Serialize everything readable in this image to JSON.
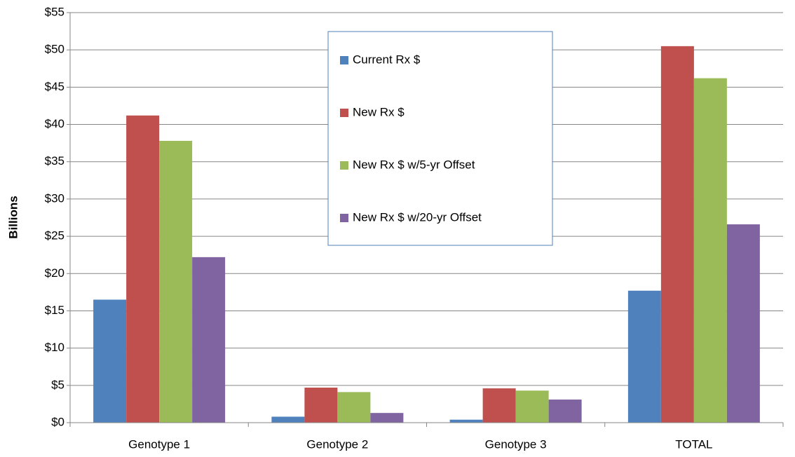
{
  "chart_data": {
    "type": "bar",
    "y_label": "Billions",
    "categories": [
      "Genotype 1",
      "Genotype 2",
      "Genotype 3",
      "TOTAL"
    ],
    "series": [
      {
        "name": "Current Rx $",
        "color": "#4f81bd",
        "values": [
          16.5,
          0.8,
          0.4,
          17.7
        ]
      },
      {
        "name": "New Rx $",
        "color": "#c0504d",
        "values": [
          41.2,
          4.7,
          4.6,
          50.5
        ]
      },
      {
        "name": "New Rx $ w/5-yr Offset",
        "color": "#9bbb59",
        "values": [
          37.8,
          4.1,
          4.3,
          46.2
        ]
      },
      {
        "name": "New Rx $ w/20-yr Offset",
        "color": "#8064a2",
        "values": [
          22.2,
          1.3,
          3.1,
          26.6
        ]
      }
    ],
    "ylim": [
      0,
      55
    ],
    "yticks": [
      {
        "value": 0,
        "label": "$0"
      },
      {
        "value": 5,
        "label": "$5"
      },
      {
        "value": 10,
        "label": "$10"
      },
      {
        "value": 15,
        "label": "$15"
      },
      {
        "value": 20,
        "label": "$20"
      },
      {
        "value": 25,
        "label": "$25"
      },
      {
        "value": 30,
        "label": "$30"
      },
      {
        "value": 35,
        "label": "$35"
      },
      {
        "value": 40,
        "label": "$40"
      },
      {
        "value": 45,
        "label": "$45"
      },
      {
        "value": 50,
        "label": "$50"
      },
      {
        "value": 55,
        "label": "$55"
      }
    ],
    "grid": true
  }
}
